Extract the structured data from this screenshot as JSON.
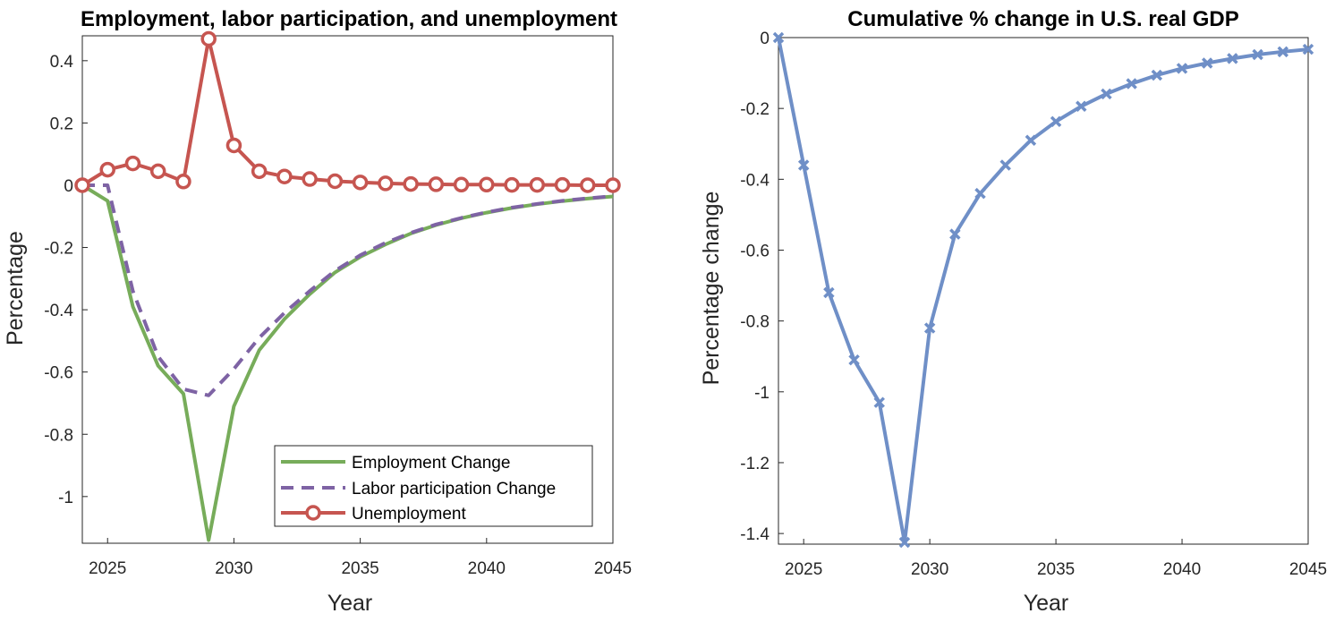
{
  "chart_data": [
    {
      "type": "line",
      "title": "Employment, labor participation, and unemployment",
      "xlabel": "Year",
      "ylabel": "Percentage",
      "xlim": [
        2024,
        2045
      ],
      "ylim": [
        -1.15,
        0.48
      ],
      "xticks": [
        2025,
        2030,
        2035,
        2040,
        2045
      ],
      "yticks": [
        0.4,
        0.2,
        0,
        -0.2,
        -0.4,
        -0.6,
        -0.8,
        -1
      ],
      "ytick_labels": [
        "0.4",
        "0.2",
        "0",
        "-0.2",
        "-0.4",
        "-0.6",
        "-0.8",
        "-1"
      ],
      "legend_position": "bottom-right",
      "x": [
        2024,
        2025,
        2026,
        2027,
        2028,
        2029,
        2030,
        2031,
        2032,
        2033,
        2034,
        2035,
        2036,
        2037,
        2038,
        2039,
        2040,
        2041,
        2042,
        2043,
        2044,
        2045
      ],
      "series": [
        {
          "name": "Employment Change",
          "color": "#77ac5a",
          "style": "solid",
          "marker": "none",
          "values": [
            0,
            -0.05,
            -0.39,
            -0.58,
            -0.67,
            -1.14,
            -0.71,
            -0.53,
            -0.43,
            -0.35,
            -0.28,
            -0.23,
            -0.19,
            -0.155,
            -0.128,
            -0.106,
            -0.088,
            -0.073,
            -0.061,
            -0.051,
            -0.043,
            -0.036
          ]
        },
        {
          "name": "Labor participation Change",
          "color": "#7e63a4",
          "style": "dashed",
          "marker": "none",
          "values": [
            0,
            0,
            -0.34,
            -0.55,
            -0.655,
            -0.675,
            -0.59,
            -0.49,
            -0.41,
            -0.34,
            -0.275,
            -0.225,
            -0.185,
            -0.153,
            -0.126,
            -0.105,
            -0.087,
            -0.072,
            -0.06,
            -0.05,
            -0.042,
            -0.035
          ]
        },
        {
          "name": "Unemployment",
          "color": "#c65550",
          "style": "solid",
          "marker": "circle",
          "values": [
            0,
            0.05,
            0.07,
            0.045,
            0.012,
            0.47,
            0.128,
            0.045,
            0.028,
            0.02,
            0.013,
            0.009,
            0.006,
            0.004,
            0.003,
            0.002,
            0.002,
            0.001,
            0.001,
            0.001,
            0,
            0
          ]
        }
      ]
    },
    {
      "type": "line",
      "title": "Cumulative % change in U.S. real GDP",
      "xlabel": "Year",
      "ylabel": "Percentage change",
      "xlim": [
        2024,
        2045
      ],
      "ylim": [
        -1.43,
        0
      ],
      "xticks": [
        2025,
        2030,
        2035,
        2040,
        2045
      ],
      "yticks": [
        0,
        -0.2,
        -0.4,
        -0.6,
        -0.8,
        -1,
        -1.2,
        -1.4
      ],
      "ytick_labels": [
        "0",
        "-0.2",
        "-0.4",
        "-0.6",
        "-0.8",
        "-1",
        "-1.2",
        "-1.4"
      ],
      "x": [
        2024,
        2025,
        2026,
        2027,
        2028,
        2029,
        2030,
        2031,
        2032,
        2033,
        2034,
        2035,
        2036,
        2037,
        2038,
        2039,
        2040,
        2041,
        2042,
        2043,
        2044,
        2045
      ],
      "series": [
        {
          "color": "#6f8fc7",
          "style": "solid",
          "marker": "x",
          "values": [
            0,
            -0.36,
            -0.72,
            -0.91,
            -1.03,
            -1.425,
            -0.82,
            -0.555,
            -0.44,
            -0.36,
            -0.29,
            -0.237,
            -0.194,
            -0.159,
            -0.13,
            -0.106,
            -0.087,
            -0.072,
            -0.059,
            -0.048,
            -0.04,
            -0.033
          ]
        }
      ]
    }
  ]
}
